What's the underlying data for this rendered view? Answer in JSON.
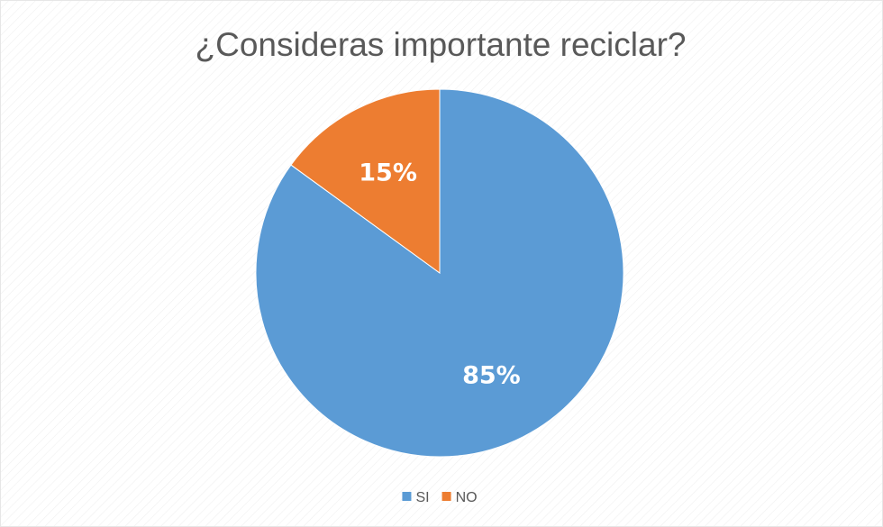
{
  "chart_data": {
    "type": "pie",
    "title": "¿Consideras importante reciclar?",
    "categories": [
      "SI",
      "NO"
    ],
    "values": [
      85,
      15
    ],
    "labels": [
      "85%",
      "15%"
    ],
    "colors": [
      "#5B9BD5",
      "#ED7D31"
    ],
    "legend_position": "bottom",
    "start": "top",
    "direction": "clockwise"
  }
}
